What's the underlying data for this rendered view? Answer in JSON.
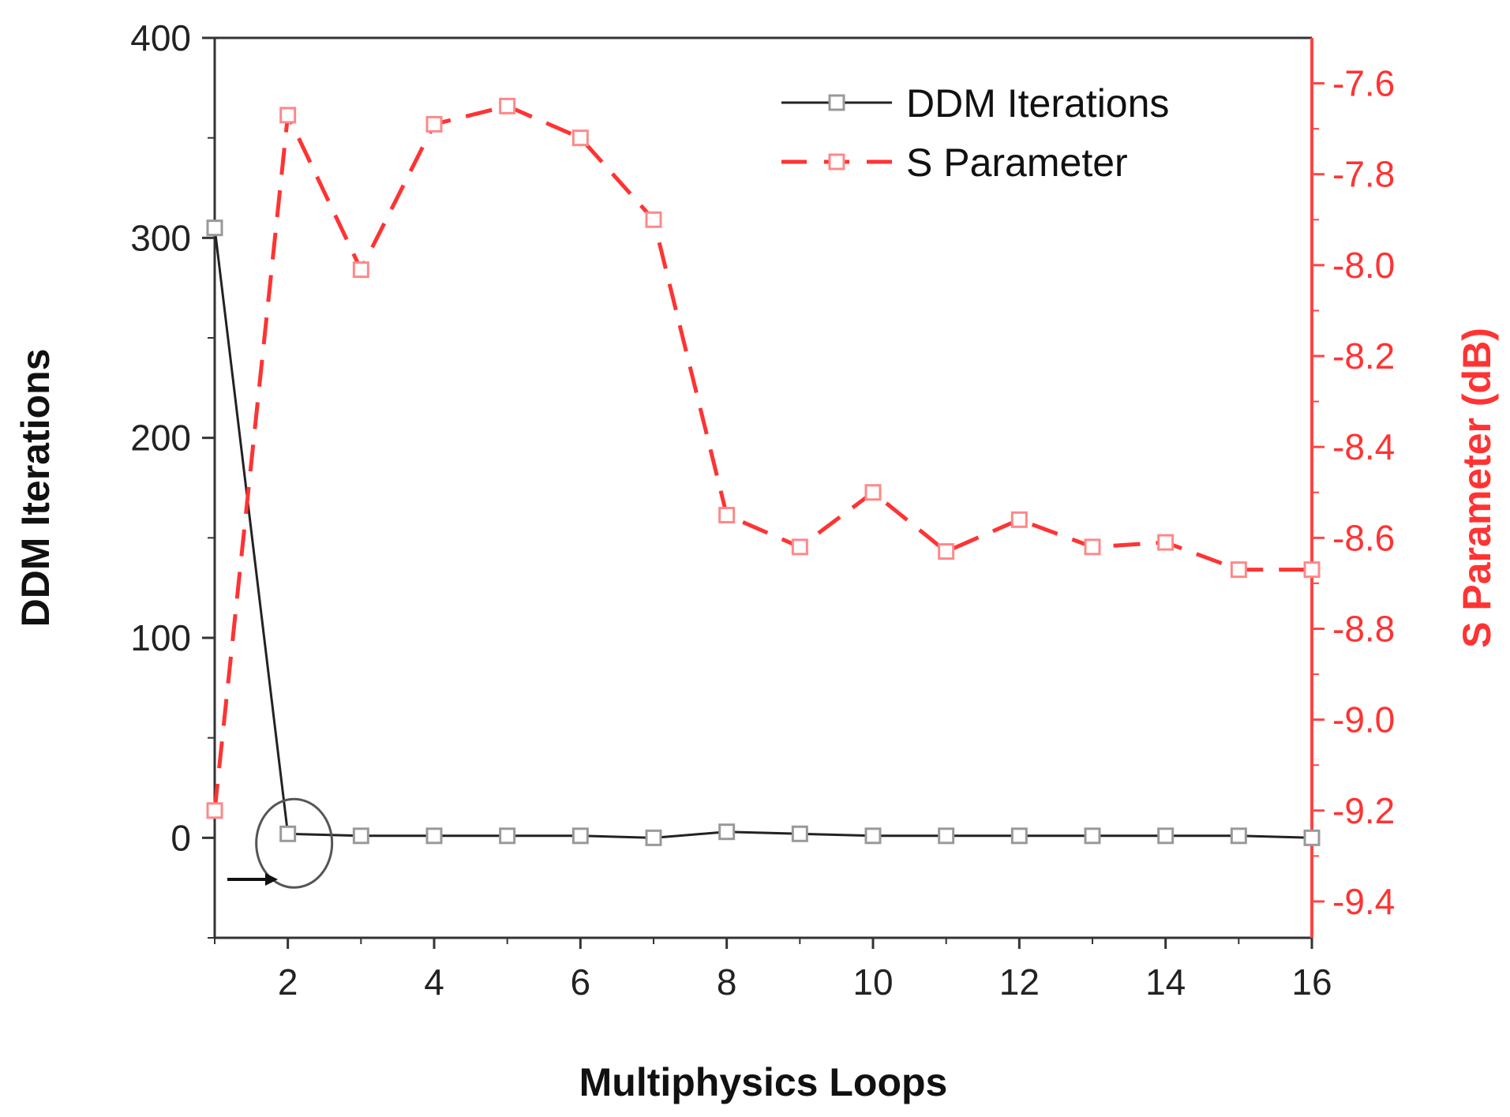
{
  "chart_data": {
    "type": "line",
    "title": "",
    "xlabel": "Multiphysics Loops",
    "ylabel_left": "DDM Iterations",
    "ylabel_right": "S Parameter (dB)",
    "xlim": [
      1,
      16
    ],
    "ylim_left": [
      -50,
      400
    ],
    "ylim_right": [
      -9.48,
      -7.5
    ],
    "x_ticks": [
      2,
      4,
      6,
      8,
      10,
      12,
      14,
      16
    ],
    "x_tick_labels": [
      "2",
      "4",
      "6",
      "8",
      "10",
      "12",
      "14",
      "16"
    ],
    "y_left_ticks": [
      0,
      100,
      200,
      300,
      400
    ],
    "y_left_tick_labels": [
      "0",
      "100",
      "200",
      "300",
      "400"
    ],
    "y_right_ticks": [
      -9.4,
      -9.2,
      -9.0,
      -8.8,
      -8.6,
      -8.4,
      -8.2,
      -8.0,
      -7.8,
      -7.6
    ],
    "y_right_tick_labels": [
      "-9.4",
      "-9.2",
      "-9.0",
      "-8.8",
      "-8.6",
      "-8.4",
      "-8.2",
      "-8.0",
      "-7.8",
      "-7.6"
    ],
    "legend_position": "top-right",
    "series": [
      {
        "name": "DDM Iterations",
        "axis": "left",
        "color": "#222222",
        "marker_color": "#999999",
        "style": "solid",
        "x": [
          1,
          2,
          3,
          4,
          5,
          6,
          7,
          8,
          9,
          10,
          11,
          12,
          13,
          14,
          15,
          16
        ],
        "values": [
          305,
          2,
          1,
          1,
          1,
          1,
          0,
          3,
          2,
          1,
          1,
          1,
          1,
          1,
          1,
          0
        ]
      },
      {
        "name": "S Parameter",
        "axis": "right",
        "color": "#ff3333",
        "marker_color": "#ff8888",
        "style": "dashed",
        "x": [
          1,
          2,
          3,
          4,
          5,
          6,
          7,
          8,
          9,
          10,
          11,
          12,
          13,
          14,
          15,
          16
        ],
        "values": [
          -9.2,
          -7.67,
          -8.01,
          -7.69,
          -7.65,
          -7.72,
          -7.9,
          -8.55,
          -8.62,
          -8.5,
          -8.63,
          -8.56,
          -8.62,
          -8.61,
          -8.67,
          -8.67
        ]
      }
    ],
    "annotations": [
      {
        "type": "circle",
        "around": "DDM Iterations at x=2"
      },
      {
        "type": "arrow",
        "description": "arrow pointing to circled point"
      }
    ]
  }
}
